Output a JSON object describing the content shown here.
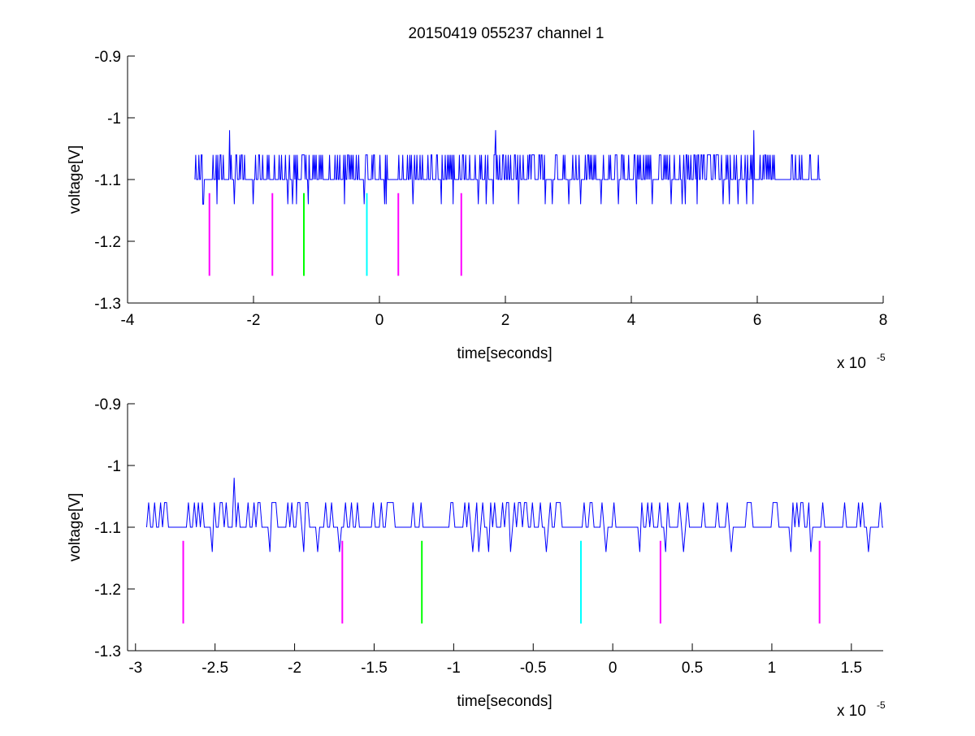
{
  "figure": {
    "title": "20150419 055237 channel 1"
  },
  "chart_data": [
    {
      "type": "line",
      "xlabel": "time[seconds]",
      "ylabel": "voltage[V]",
      "x_exponent_label": "x 10",
      "x_exponent": "-5",
      "xlim": [
        -4,
        8
      ],
      "ylim": [
        -1.3,
        -0.9
      ],
      "xticks": [
        -4,
        -2,
        0,
        2,
        4,
        6,
        8
      ],
      "xtick_labels": [
        "-4",
        "-2",
        "0",
        "2",
        "4",
        "6",
        "8"
      ],
      "yticks": [
        -0.9,
        -1.0,
        -1.1,
        -1.2,
        -1.3
      ],
      "ytick_labels": [
        "-0.9",
        "-1",
        "-1.1",
        "-1.2",
        "-1.3"
      ],
      "grid": false,
      "signal": {
        "color": "#0000ff",
        "x_start": -2.93,
        "x_end": 7.0,
        "baseline": -1.1,
        "high": -1.06,
        "low": -1.14,
        "spikes": [
          {
            "x": -2.38,
            "y": -1.02
          },
          {
            "x": 1.84,
            "y": -1.02
          },
          {
            "x": 5.94,
            "y": -1.02
          }
        ]
      },
      "markers": [
        {
          "x": -2.7,
          "y_top": -1.122,
          "y_bottom": -1.256,
          "color": "#ff00ff"
        },
        {
          "x": -1.7,
          "y_top": -1.122,
          "y_bottom": -1.256,
          "color": "#ff00ff"
        },
        {
          "x": -1.2,
          "y_top": -1.122,
          "y_bottom": -1.256,
          "color": "#00ff00"
        },
        {
          "x": -0.2,
          "y_top": -1.122,
          "y_bottom": -1.256,
          "color": "#00ffff"
        },
        {
          "x": 0.3,
          "y_top": -1.122,
          "y_bottom": -1.256,
          "color": "#ff00ff"
        },
        {
          "x": 1.3,
          "y_top": -1.122,
          "y_bottom": -1.256,
          "color": "#ff00ff"
        }
      ]
    },
    {
      "type": "line",
      "xlabel": "time[seconds]",
      "ylabel": "voltage[V]",
      "x_exponent_label": "x 10",
      "x_exponent": "-5",
      "xlim": [
        -3.05,
        1.7
      ],
      "ylim": [
        -1.3,
        -0.9
      ],
      "xticks": [
        -3,
        -2.5,
        -2,
        -1.5,
        -1,
        -0.5,
        0,
        0.5,
        1,
        1.5
      ],
      "xtick_labels": [
        "-3",
        "-2.5",
        "-2",
        "-1.5",
        "-1",
        "-0.5",
        "0",
        "0.5",
        "1",
        "1.5"
      ],
      "yticks": [
        -0.9,
        -1.0,
        -1.1,
        -1.2,
        -1.3
      ],
      "ytick_labels": [
        "-0.9",
        "-1",
        "-1.1",
        "-1.2",
        "-1.3"
      ],
      "grid": false,
      "signal": {
        "color": "#0000ff",
        "x_start": -2.93,
        "x_end": 1.7,
        "baseline": -1.1,
        "high": -1.06,
        "low": -1.14,
        "spikes": [
          {
            "x": -2.38,
            "y": -1.02
          }
        ]
      },
      "markers": [
        {
          "x": -2.7,
          "y_top": -1.122,
          "y_bottom": -1.256,
          "color": "#ff00ff"
        },
        {
          "x": -1.7,
          "y_top": -1.122,
          "y_bottom": -1.256,
          "color": "#ff00ff"
        },
        {
          "x": -1.2,
          "y_top": -1.122,
          "y_bottom": -1.256,
          "color": "#00ff00"
        },
        {
          "x": -0.2,
          "y_top": -1.122,
          "y_bottom": -1.256,
          "color": "#00ffff"
        },
        {
          "x": 0.3,
          "y_top": -1.122,
          "y_bottom": -1.256,
          "color": "#ff00ff"
        },
        {
          "x": 1.3,
          "y_top": -1.122,
          "y_bottom": -1.256,
          "color": "#ff00ff"
        }
      ]
    }
  ]
}
